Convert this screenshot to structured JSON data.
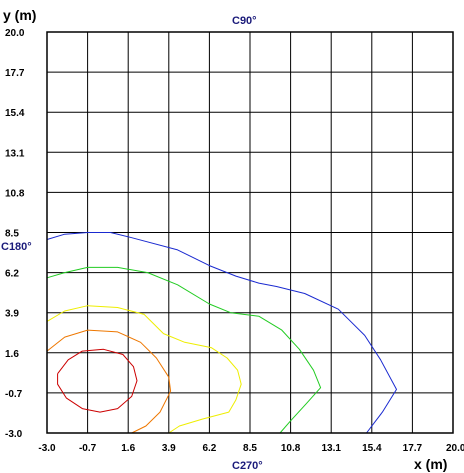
{
  "chart_data": {
    "type": "contour",
    "xlabel": "x (m)",
    "ylabel": "y (m)",
    "xlim": [
      -3.0,
      20.0
    ],
    "ylim": [
      -3.0,
      20.0
    ],
    "x_ticks": [
      "-3.0",
      "-0.7",
      "1.6",
      "3.9",
      "6.2",
      "8.5",
      "10.8",
      "13.1",
      "15.4",
      "17.7",
      "20.0"
    ],
    "y_ticks": [
      "-3.0",
      "-0.7",
      "1.6",
      "3.9",
      "6.2",
      "8.5",
      "10.8",
      "13.1",
      "15.4",
      "17.7",
      "20.0"
    ],
    "grid": true,
    "annotations": {
      "top": "C90°",
      "left": "C180°",
      "bottom": "C270°"
    },
    "series": [
      {
        "color": "#cc0000",
        "points": [
          [
            -2.4,
            0.4
          ],
          [
            -1.8,
            1.2
          ],
          [
            -1.0,
            1.7
          ],
          [
            0.2,
            1.8
          ],
          [
            1.3,
            1.5
          ],
          [
            1.9,
            0.8
          ],
          [
            2.1,
            0.0
          ],
          [
            1.8,
            -0.9
          ],
          [
            1.0,
            -1.6
          ],
          [
            0.0,
            -1.8
          ],
          [
            -1.0,
            -1.6
          ],
          [
            -1.9,
            -1.0
          ],
          [
            -2.4,
            -0.2
          ],
          [
            -2.4,
            0.4
          ]
        ]
      },
      {
        "color": "#ee7700",
        "points": [
          [
            -3.0,
            1.7
          ],
          [
            -2.0,
            2.5
          ],
          [
            -0.7,
            2.9
          ],
          [
            1.0,
            2.8
          ],
          [
            2.3,
            2.2
          ],
          [
            3.2,
            1.3
          ],
          [
            3.9,
            0.2
          ],
          [
            4.0,
            -0.6
          ],
          [
            3.4,
            -1.8
          ],
          [
            2.6,
            -2.6
          ],
          [
            1.8,
            -3.0
          ]
        ]
      },
      {
        "color": "#eeee00",
        "points": [
          [
            -3.0,
            3.4
          ],
          [
            -2.0,
            4.0
          ],
          [
            -0.7,
            4.3
          ],
          [
            1.0,
            4.2
          ],
          [
            2.5,
            3.8
          ],
          [
            3.6,
            2.7
          ],
          [
            4.8,
            2.2
          ],
          [
            6.3,
            1.9
          ],
          [
            7.2,
            1.3
          ],
          [
            7.8,
            0.6
          ],
          [
            8.0,
            -0.2
          ],
          [
            7.7,
            -1.1
          ],
          [
            7.3,
            -1.8
          ],
          [
            5.8,
            -2.2
          ],
          [
            4.5,
            -2.6
          ],
          [
            3.9,
            -3.0
          ]
        ]
      },
      {
        "color": "#22cc22",
        "points": [
          [
            -3.0,
            5.9
          ],
          [
            -2.0,
            6.2
          ],
          [
            -0.7,
            6.5
          ],
          [
            1.0,
            6.5
          ],
          [
            2.7,
            6.2
          ],
          [
            4.4,
            5.5
          ],
          [
            6.2,
            4.4
          ],
          [
            7.4,
            3.9
          ],
          [
            9.0,
            3.7
          ],
          [
            10.3,
            2.9
          ],
          [
            11.3,
            1.8
          ],
          [
            12.1,
            0.6
          ],
          [
            12.5,
            -0.4
          ],
          [
            11.7,
            -1.3
          ],
          [
            10.8,
            -2.3
          ],
          [
            10.2,
            -3.0
          ]
        ]
      },
      {
        "color": "#1a2ad0",
        "points": [
          [
            -3.0,
            8.1
          ],
          [
            -2.0,
            8.4
          ],
          [
            -0.7,
            8.5
          ],
          [
            0.6,
            8.5
          ],
          [
            1.8,
            8.2
          ],
          [
            4.4,
            7.5
          ],
          [
            6.2,
            6.6
          ],
          [
            7.7,
            6.0
          ],
          [
            9.0,
            5.6
          ],
          [
            10.0,
            5.4
          ],
          [
            11.6,
            5.0
          ],
          [
            13.5,
            4.1
          ],
          [
            15.0,
            2.6
          ],
          [
            15.9,
            1.2
          ],
          [
            16.8,
            -0.5
          ],
          [
            16.0,
            -1.8
          ],
          [
            15.1,
            -3.0
          ]
        ]
      }
    ]
  }
}
